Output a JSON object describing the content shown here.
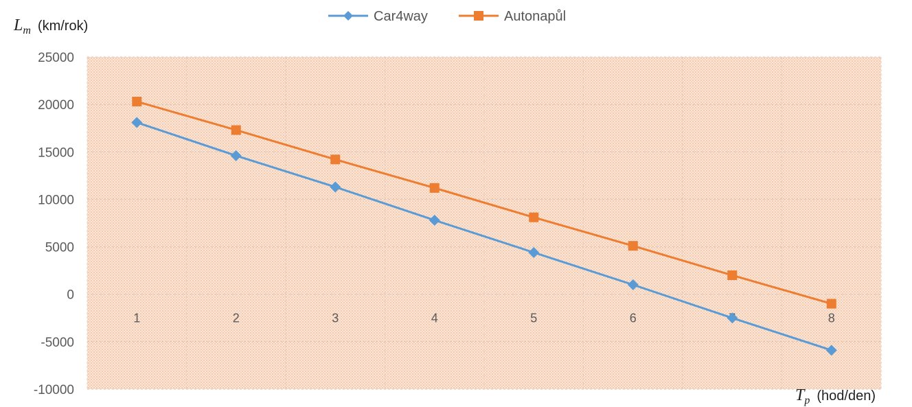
{
  "chart_data": {
    "type": "line",
    "title": "",
    "ylabel": {
      "symbol": "L",
      "subscript": "m",
      "unit": "(km/rok)"
    },
    "xlabel": {
      "symbol": "T",
      "subscript": "p",
      "unit": "(hod/den)"
    },
    "x": [
      1,
      2,
      3,
      4,
      5,
      6,
      7,
      8
    ],
    "x_tick_labels": [
      "1",
      "2",
      "3",
      "4",
      "5",
      "6",
      "7",
      "8"
    ],
    "ylim": [
      -10000,
      25000
    ],
    "y_ticks": [
      25000,
      20000,
      15000,
      10000,
      5000,
      0,
      -5000,
      -10000
    ],
    "y_tick_labels": [
      "25000",
      "20000",
      "15000",
      "10000",
      "5000",
      "0",
      "-5000",
      "-10000"
    ],
    "grid": true,
    "legend_position": "top",
    "series": [
      {
        "name": "Car4way",
        "color": "#5b9bd5",
        "marker": "diamond",
        "values": [
          18100,
          14600,
          11300,
          7800,
          4400,
          1000,
          -2500,
          -5900
        ]
      },
      {
        "name": "Autonapůl",
        "color": "#ed7d31",
        "marker": "square",
        "values": [
          20300,
          17300,
          14200,
          11200,
          8100,
          5100,
          2000,
          -1000
        ]
      }
    ],
    "plot_background": "#fbe5d6",
    "pattern_color": "#e8a87c"
  }
}
